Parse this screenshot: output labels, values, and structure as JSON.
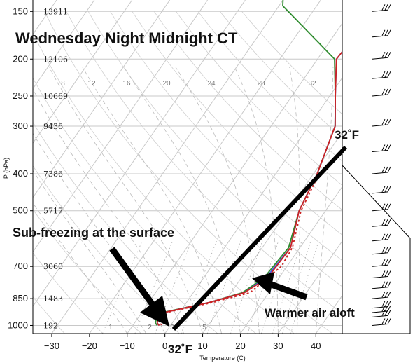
{
  "chart_data": {
    "type": "line",
    "title": "Wednesday Night Midnight CT",
    "xlabel": "Temperature (C)",
    "ylabel": "P (hPa)",
    "xlim": [
      -35,
      47
    ],
    "ylim": [
      1050,
      140
    ],
    "y_scale": "log",
    "x_ticks": [
      -30,
      -20,
      -10,
      0,
      10,
      20,
      30,
      40
    ],
    "pressure_levels": [
      {
        "p": 150,
        "label": "150",
        "height": "13911"
      },
      {
        "p": 200,
        "label": "200",
        "height": "12106"
      },
      {
        "p": 250,
        "label": "250",
        "height": "10669"
      },
      {
        "p": 300,
        "label": "300",
        "height": "9436"
      },
      {
        "p": 400,
        "label": "400",
        "height": "7386"
      },
      {
        "p": 500,
        "label": "500",
        "height": "5717"
      },
      {
        "p": 700,
        "label": "700",
        "height": "3060"
      },
      {
        "p": 850,
        "label": "850",
        "height": "1483"
      },
      {
        "p": 1000,
        "label": "1000",
        "height": "192"
      }
    ],
    "mixing_ratio_labels": [
      "1",
      "2",
      "3",
      "5",
      "8",
      "12",
      "16",
      "20",
      "24",
      "28",
      "32"
    ],
    "series": [
      {
        "color": "#2e8b2e",
        "points": [
          [
            -30,
            140
          ],
          [
            -29,
            145
          ],
          [
            -5.5,
            200
          ],
          [
            1.5,
            250
          ],
          [
            7,
            300
          ],
          [
            11,
            400
          ],
          [
            13,
            500
          ],
          [
            17,
            625
          ],
          [
            16,
            750
          ],
          [
            13,
            820
          ],
          [
            6,
            870
          ],
          [
            -5.5,
            930
          ],
          [
            -4.5,
            985
          ],
          [
            -3.5,
            1000
          ]
        ]
      },
      {
        "color": "#4455dd",
        "points": [
          [
            -3.5,
            140
          ],
          [
            -5,
            200
          ],
          [
            1.5,
            250
          ],
          [
            7,
            300
          ],
          [
            11,
            400
          ],
          [
            13,
            500
          ],
          [
            17.5,
            625
          ],
          [
            16.5,
            750
          ],
          [
            13.5,
            820
          ],
          [
            6,
            870
          ],
          [
            -5,
            930
          ],
          [
            -4,
            985
          ],
          [
            -3,
            1000
          ]
        ]
      },
      {
        "color": "#cc2222",
        "dashed": false,
        "points": [
          [
            -3.5,
            140
          ],
          [
            -5,
            200
          ],
          [
            1.5,
            250
          ],
          [
            7,
            300
          ],
          [
            11,
            400
          ],
          [
            13,
            500
          ],
          [
            17.5,
            625
          ],
          [
            17,
            750
          ],
          [
            13.5,
            820
          ],
          [
            6,
            870
          ],
          [
            -5,
            930
          ],
          [
            -4,
            985
          ],
          [
            -3,
            1000
          ]
        ]
      },
      {
        "color": "#cc2222",
        "dashed": true,
        "points": [
          [
            11.5,
            400
          ],
          [
            13.5,
            500
          ],
          [
            18,
            625
          ],
          [
            18.5,
            700
          ],
          [
            15,
            820
          ],
          [
            7,
            870
          ],
          [
            -4.5,
            930
          ],
          [
            -3.5,
            985
          ],
          [
            -2,
            1000
          ]
        ]
      }
    ],
    "grid": true
  },
  "annotations": {
    "surface_label": "Sub-freezing at the surface",
    "aloft_label": "Warmer air aloft",
    "freeze_top": "32˚F",
    "freeze_bottom": "32˚F"
  },
  "colors": {
    "temperature": "#2e8b2e",
    "dewpoint": "#cc2222",
    "isotherm_line": "#000000",
    "grid": "#bbbbbb"
  }
}
